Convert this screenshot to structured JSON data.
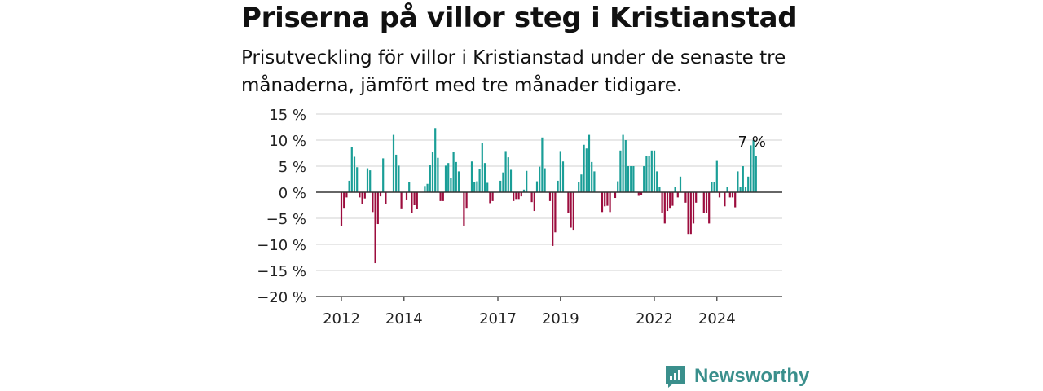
{
  "title": "Priserna på villor steg i Kristianstad",
  "subtitle": "Prisutveckling för villor i Kristianstad under de senaste tre månaderna, jämfört med tre månader tidigare.",
  "brand": {
    "name": "Newsworthy",
    "icon": "newsworthy-logo-icon",
    "color": "#3a8f8c"
  },
  "colors": {
    "positive": "#1a9e97",
    "negative": "#9c0d3e",
    "grid": "#d9d9d9",
    "zero_line": "#333333"
  },
  "chart_data": {
    "type": "bar",
    "x_start": "2012-01",
    "x_step": "month",
    "ylim": [
      -20,
      15
    ],
    "yticks": [
      15,
      10,
      5,
      0,
      -5,
      -10,
      -15,
      -20
    ],
    "ytick_labels": [
      "15 %",
      "10 %",
      "5 %",
      "0 %",
      "−5 %",
      "−10 %",
      "−15 %",
      "−20 %"
    ],
    "xticks": [
      {
        "label": "2012",
        "index": 0
      },
      {
        "label": "2014",
        "index": 24
      },
      {
        "label": "2017",
        "index": 60
      },
      {
        "label": "2019",
        "index": 84
      },
      {
        "label": "2022",
        "index": 120
      },
      {
        "label": "2024",
        "index": 144
      }
    ],
    "values": [
      -6.5,
      -3,
      -1,
      2.2,
      8.7,
      6.8,
      4.8,
      -1,
      -2.2,
      -1.2,
      4.6,
      4.2,
      -3.8,
      -13.6,
      -6.1,
      -0.8,
      6.5,
      -2.2,
      0,
      0,
      11,
      7.2,
      5.1,
      -3.1,
      0,
      -1.4,
      2,
      -4,
      -2.5,
      -3.2,
      0,
      0,
      1.2,
      1.6,
      5.2,
      7.8,
      12.3,
      6.6,
      -1.7,
      -1.7,
      5.1,
      5.6,
      2.8,
      7.7,
      5.8,
      4,
      0,
      -6.4,
      -3,
      0,
      5.9,
      2,
      2.1,
      4.4,
      9.5,
      5.6,
      1.8,
      -2.1,
      -1.7,
      0,
      0,
      2.2,
      3.8,
      7.9,
      6.7,
      4.3,
      -1.7,
      -1.3,
      -1.3,
      -0.8,
      0.5,
      4.1,
      0,
      -1.9,
      -3.6,
      2.1,
      4.9,
      10.5,
      4.6,
      0,
      -1.7,
      -10.3,
      -7.7,
      2.2,
      7.9,
      5.9,
      0,
      -4,
      -6.8,
      -7.2,
      0,
      1.9,
      3.4,
      9.1,
      8.4,
      11,
      5.8,
      4,
      0,
      0,
      -3.8,
      -2.7,
      -2.6,
      -3.8,
      0,
      -1.1,
      2.1,
      8,
      11,
      10,
      5,
      5,
      5,
      0,
      -0.7,
      -0.5,
      5,
      7,
      7,
      8,
      8,
      4,
      1,
      -3.9,
      -6,
      -3.6,
      -3,
      -2.6,
      1,
      -1,
      3,
      0,
      -2,
      -8,
      -8,
      -6,
      -2,
      0,
      0,
      -4,
      -4,
      -6,
      2,
      2,
      6,
      -1,
      0,
      -2.7,
      1,
      -1,
      -1,
      -2.9,
      4,
      1,
      5,
      1,
      3,
      9,
      10,
      7
    ],
    "annotation": {
      "label": "7 %",
      "index": 159
    }
  }
}
